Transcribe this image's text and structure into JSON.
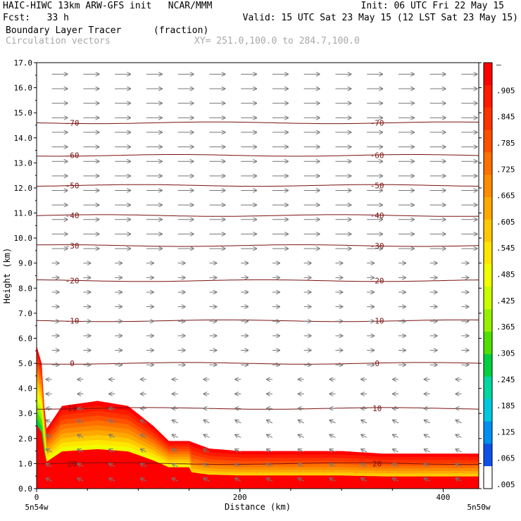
{
  "header": {
    "line1_left": "HAIC-HIWC 13km ARW-GFS init   NCAR/MMM",
    "line1_right": "Init: 06 UTC Fri 22 May 15",
    "line2_left": "Fcst:   33 h",
    "line2_right": "Valid: 15 UTC Sat 23 May 15 (12 LST Sat 23 May 15)",
    "field_name": "Boundary Layer Tracer",
    "field_units": "(fraction)",
    "overlay_name": "Circulation vectors",
    "xy_range": "XY= 251.0,100.0 to 284.7,100.0"
  },
  "chart_data": {
    "type": "heatmap",
    "title": "Boundary Layer Tracer",
    "xlabel": "Distance (km)",
    "ylabel": "Height (km)",
    "xlim": [
      0,
      435
    ],
    "ylim": [
      0,
      17
    ],
    "x_ticks": [
      "0",
      "200",
      "400"
    ],
    "y_ticks": [
      "0.0",
      "1.0",
      "2.0",
      "3.0",
      "4.0",
      "5.0",
      "6.0",
      "7.0",
      "8.0",
      "9.0",
      "10.0",
      "11.0",
      "12.0",
      "13.0",
      "14.0",
      "15.0",
      "16.0",
      "17.0"
    ],
    "x_end_labels": {
      "left": "5n54w",
      "right": "5n50w"
    },
    "colorbar": {
      "labels": [
        "–",
        ".905",
        ".845",
        ".785",
        ".725",
        ".665",
        ".605",
        ".545",
        ".485",
        ".425",
        ".365",
        ".305",
        ".245",
        ".185",
        ".125",
        ".065",
        ".005"
      ],
      "colors": [
        "#ff0000",
        "#ff1a00",
        "#ff3300",
        "#ff5000",
        "#ff7000",
        "#ff8c00",
        "#ffa800",
        "#ffc800",
        "#ffe600",
        "#f0ff00",
        "#c8ff00",
        "#96f000",
        "#50e000",
        "#00d040",
        "#00d8a0",
        "#00c8e0",
        "#0090f0",
        "#1050e8",
        "#ffffff"
      ]
    },
    "tracer_top_profile": [
      {
        "x": 0,
        "z": 5.7
      },
      {
        "x": 5,
        "z": 5.0
      },
      {
        "x": 8,
        "z": 3.0
      },
      {
        "x": 10,
        "z": 2.4
      },
      {
        "x": 25,
        "z": 3.3
      },
      {
        "x": 60,
        "z": 3.5
      },
      {
        "x": 90,
        "z": 3.3
      },
      {
        "x": 115,
        "z": 2.5
      },
      {
        "x": 130,
        "z": 1.9
      },
      {
        "x": 150,
        "z": 1.9
      },
      {
        "x": 170,
        "z": 1.6
      },
      {
        "x": 200,
        "z": 1.5
      },
      {
        "x": 300,
        "z": 1.5
      },
      {
        "x": 340,
        "z": 1.4
      },
      {
        "x": 435,
        "z": 1.4
      }
    ],
    "temperature_contours": [
      {
        "label": "-70",
        "z": 14.6
      },
      {
        "label": "-60",
        "z": 13.3
      },
      {
        "label": "-50",
        "z": 12.1
      },
      {
        "label": "-40",
        "z": 10.9
      },
      {
        "label": "-30",
        "z": 9.7
      },
      {
        "label": "-20",
        "z": 8.3
      },
      {
        "label": "-10",
        "z": 6.7
      },
      {
        "label": "0",
        "z": 5.0
      },
      {
        "label": "10",
        "z": 3.2
      },
      {
        "label": "20",
        "z": 1.0
      }
    ],
    "grid_on": false
  }
}
